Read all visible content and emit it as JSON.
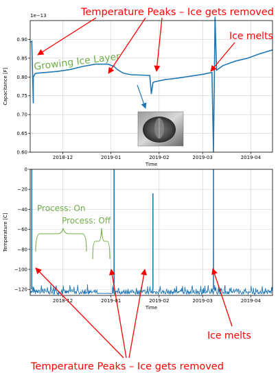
{
  "annotations": {
    "top_callout": "Temperature Peaks – Ice gets removed",
    "ice_melts_top": "Ice melts",
    "growing_ice": "Growing Ice Layer",
    "process_on": "Process: On",
    "process_off": "Process: Off",
    "ice_melts_bottom": "Ice melts",
    "bottom_callout": "Temperature Peaks – Ice gets removed"
  },
  "colors": {
    "series": "#1f77b4",
    "callout_red": "#ff0000",
    "annotation_green": "#70ad47",
    "frame": "#000000",
    "grid": "#d0d0d0"
  },
  "icons": {
    "inset_photo": "ice-layer-photo"
  },
  "chart_data": [
    {
      "type": "line",
      "title": "",
      "xlabel": "Time",
      "ylabel": "Capacitance [F]",
      "y_offset_label": "1e−13",
      "xlim": [
        "2018-11-10",
        "2019-04-15"
      ],
      "ylim": [
        0.6,
        0.95
      ],
      "x_ticks": [
        "2018-12-01",
        "2019-01-01",
        "2019-02-01",
        "2019-03-01",
        "2019-04-01"
      ],
      "x_tick_labels": [
        "2018-12",
        "2019-01",
        "2019-02",
        "2019-03",
        "2019-04"
      ],
      "y_ticks": [
        0.6,
        0.65,
        0.7,
        0.75,
        0.8,
        0.85,
        0.9
      ],
      "y_tick_labels": [
        "0.60",
        "0.65",
        "0.70",
        "0.75",
        "0.80",
        "0.85",
        "0.90"
      ],
      "grid": true,
      "series": [
        {
          "x": [
            "2018-11-10",
            "2018-11-11",
            "2018-11-12",
            "2018-11-12",
            "2018-11-13",
            "2018-11-14",
            "2018-11-20",
            "2018-11-28",
            "2018-12-06",
            "2018-12-14",
            "2018-12-22",
            "2018-12-30",
            "2019-01-03",
            "2019-01-05",
            "2019-01-09",
            "2019-01-14",
            "2019-01-20",
            "2019-01-26",
            "2019-01-27",
            "2019-01-28",
            "2019-01-29",
            "2019-02-05",
            "2019-02-13",
            "2019-02-21",
            "2019-03-01",
            "2019-03-07",
            "2019-03-08",
            "2019-03-09",
            "2019-03-10",
            "2019-03-14",
            "2019-03-22",
            "2019-03-30",
            "2019-04-07",
            "2019-04-15"
          ],
          "y": [
            0.893,
            0.895,
            0.73,
            0.8,
            0.808,
            0.81,
            0.812,
            0.815,
            0.82,
            0.828,
            0.834,
            0.834,
            0.828,
            0.82,
            0.81,
            0.806,
            0.805,
            0.804,
            0.755,
            0.785,
            0.787,
            0.793,
            0.797,
            0.802,
            0.807,
            0.812,
            0.6,
            0.96,
            0.818,
            0.83,
            0.842,
            0.85,
            0.862,
            0.872
          ]
        }
      ]
    },
    {
      "type": "line",
      "title": "",
      "xlabel": "Time",
      "ylabel": "Temperature [C]",
      "xlim": [
        "2018-11-10",
        "2019-04-15"
      ],
      "ylim": [
        -126,
        0
      ],
      "x_ticks": [
        "2018-12-01",
        "2019-01-01",
        "2019-02-01",
        "2019-03-01",
        "2019-04-01"
      ],
      "x_tick_labels": [
        "2018-12",
        "2019-01",
        "2019-02",
        "2019-03",
        "2019-04"
      ],
      "y_ticks": [
        0,
        -20,
        -40,
        -60,
        -80,
        -100,
        -120
      ],
      "y_tick_labels": [
        "0",
        "−20",
        "−40",
        "−60",
        "−80",
        "−100",
        "−120"
      ],
      "grid": true,
      "baseline_range": [
        -125,
        -115
      ],
      "gap_range": [
        "2018-12-23",
        "2019-01-02"
      ],
      "gap_value": -124,
      "series": [
        {
          "spikes": [
            {
              "x": "2018-11-11",
              "y": 0
            },
            {
              "x": "2019-01-03",
              "y": 0
            },
            {
              "x": "2019-01-28",
              "y": -24
            },
            {
              "x": "2019-03-08",
              "y": 0
            }
          ]
        }
      ]
    }
  ]
}
